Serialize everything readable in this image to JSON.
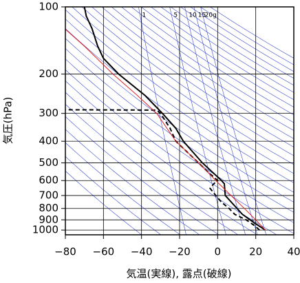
{
  "chart_data": {
    "type": "emagram",
    "xlabel": "気温(実線), 露点(破線)",
    "ylabel": "気圧(hPa)",
    "xlim": [
      -80,
      40
    ],
    "xticks": [
      {
        "value": -80,
        "label": "−80"
      },
      {
        "value": -60,
        "label": "−60"
      },
      {
        "value": -40,
        "label": "−40"
      },
      {
        "value": -20,
        "label": "−20"
      },
      0,
      20,
      40
    ],
    "ylim": [
      100,
      1050
    ],
    "yticks": [
      100,
      200,
      300,
      400,
      500,
      600,
      700,
      800,
      900,
      1000
    ],
    "log_y": true,
    "grid": true,
    "mixing_ratios": [
      {
        "value": 1,
        "label": "1"
      },
      {
        "value": 5,
        "label": "5"
      },
      {
        "value": 10,
        "label": "10"
      },
      {
        "value": 15,
        "label": "15"
      },
      {
        "value": 20,
        "label": "20g"
      }
    ],
    "series": [
      {
        "color": "#000000",
        "dash": false,
        "pressure": [
          1000,
          925,
          850,
          700,
          620,
          600,
          500,
          400,
          350,
          300,
          250,
          200,
          170,
          150,
          125,
          110,
          100
        ],
        "values": [
          25,
          19,
          13,
          4,
          3.5,
          2,
          -8,
          -18,
          -22,
          -29,
          -38,
          -52,
          -60,
          -63,
          -66,
          -69,
          -70
        ]
      },
      {
        "color": "#000000",
        "dash": true,
        "pressure": [
          1000,
          950,
          900,
          850,
          800,
          750,
          700,
          650,
          620,
          600,
          550,
          500,
          400,
          350,
          300,
          290,
          289
        ],
        "values": [
          22,
          19,
          15,
          9,
          6,
          2,
          -1,
          -4,
          -2,
          0,
          -5,
          -10,
          -22,
          -25,
          -30,
          -32,
          -80
        ]
      },
      {
        "color": "#e02020",
        "dash": false,
        "pressure": [
          1000,
          900,
          800,
          700,
          600,
          500,
          400,
          300,
          250,
          200,
          150,
          126
        ],
        "values": [
          25,
          20,
          14,
          7,
          -1,
          -10,
          -22,
          -32,
          -42,
          -55,
          -70,
          -80
        ]
      }
    ]
  }
}
